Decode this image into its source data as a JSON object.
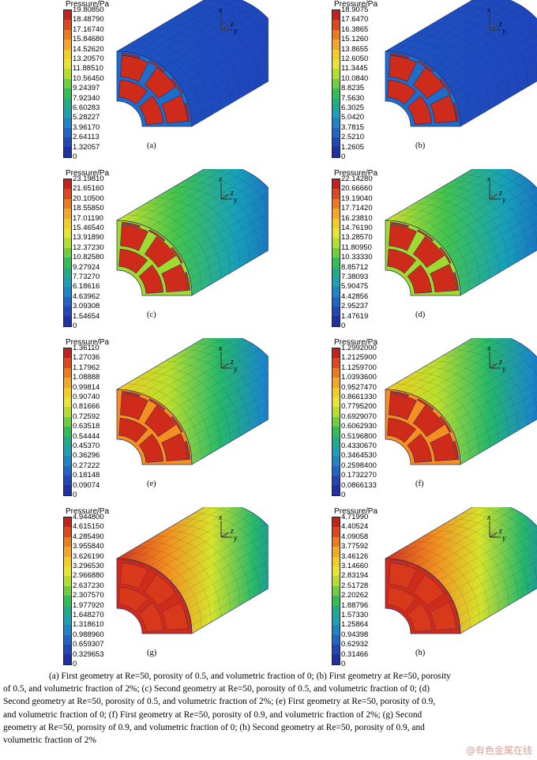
{
  "panels": [
    {
      "id": "a",
      "label": "(a)",
      "legend_title": "Pressure/Pa",
      "ticks": [
        "19.80850",
        "18.48790",
        "17.16740",
        "15.84680",
        "14.52620",
        "13.20570",
        "11.88510",
        "10.56450",
        "9.24397",
        "7.92340",
        "6.60283",
        "5.28227",
        "3.96170",
        "2.64113",
        "1.32057",
        "0"
      ],
      "scheme": "lowflat",
      "end": "cold"
    },
    {
      "id": "b",
      "label": "(b)",
      "legend_title": "Pressure/Pa",
      "ticks": [
        "18.9075",
        "17.6470",
        "16.3865",
        "15.1260",
        "13.8655",
        "12.6050",
        "11.3445",
        "10.0840",
        "8.8235",
        "7.5630",
        "6.3025",
        "5.0420",
        "3.7815",
        "2.5210",
        "1.2605",
        "0"
      ],
      "scheme": "lowflat",
      "end": "cold"
    },
    {
      "id": "c",
      "label": "(c)",
      "legend_title": "Pressure/Pa",
      "ticks": [
        "23.19810",
        "21.65160",
        "20.10500",
        "18.55850",
        "17.01190",
        "15.46540",
        "13.91890",
        "12.37230",
        "10.82580",
        "9.27924",
        "7.73270",
        "6.18616",
        "4.63962",
        "3.09308",
        "1.54654",
        "0"
      ],
      "scheme": "lowgrad",
      "end": "grid"
    },
    {
      "id": "d",
      "label": "(d)",
      "legend_title": "Pressure/Pa",
      "ticks": [
        "22.14280",
        "20.66660",
        "19.19040",
        "17.71420",
        "16.23810",
        "14.76190",
        "13.28570",
        "11.80950",
        "10.33330",
        "8.85712",
        "7.38093",
        "5.90475",
        "4.42856",
        "2.95237",
        "1.47619",
        "0"
      ],
      "scheme": "lowgrad",
      "end": "grid"
    },
    {
      "id": "e",
      "label": "(e)",
      "legend_title": "Pressure/Pa",
      "ticks": [
        "1.36110",
        "1.27036",
        "1.17962",
        "1.08888",
        "0.99814",
        "0.90740",
        "0.81666",
        "0.72592",
        "0.63518",
        "0.54444",
        "0.45370",
        "0.36296",
        "0.27222",
        "0.18148",
        "0.09074",
        "0"
      ],
      "scheme": "midgrad",
      "end": "warm"
    },
    {
      "id": "f",
      "label": "(f)",
      "legend_title": "Pressure/Pa",
      "ticks": [
        "1.2992000",
        "1.2125900",
        "1.1259700",
        "1.0393600",
        "0.9527470",
        "0.8661330",
        "0.7795200",
        "0.6929070",
        "0.6062930",
        "0.5196800",
        "0.4330670",
        "0.3464530",
        "0.2598400",
        "0.1732270",
        "0.0866133",
        "0"
      ],
      "scheme": "midgrad",
      "end": "warm"
    },
    {
      "id": "g",
      "label": "(g)",
      "legend_title": "Pressure/Pa",
      "ticks": [
        "4.944800",
        "4.615150",
        "4.285490",
        "3.955840",
        "3.626190",
        "3.296530",
        "2.966880",
        "2.637230",
        "2.307570",
        "1.977920",
        "1.648270",
        "1.318610",
        "0.988960",
        "0.659307",
        "0.329653",
        "0"
      ],
      "scheme": "highgrad",
      "end": "hot"
    },
    {
      "id": "h",
      "label": "(h)",
      "legend_title": "Pressure/Pa",
      "ticks": [
        "4.71990",
        "4.40524",
        "4.09058",
        "3.77592",
        "3.46126",
        "3.14660",
        "2.83194",
        "2.51728",
        "2.20262",
        "1.88796",
        "1.57330",
        "1.25864",
        "0.94398",
        "0.62932",
        "0.31466",
        "0"
      ],
      "scheme": "highgrad",
      "end": "hot"
    }
  ],
  "axes": {
    "x": "x",
    "y": "y",
    "z": "z"
  },
  "colormap": [
    "#c8211b",
    "#e2461b",
    "#f0791e",
    "#f5a623",
    "#f4cd21",
    "#e7e62a",
    "#b5de2c",
    "#6fcf3a",
    "#2fbf55",
    "#1aae8a",
    "#17a2b8",
    "#1b86c9",
    "#1c67c9",
    "#1f48bd",
    "#2030a8"
  ],
  "caption": {
    "lines": [
      "(a) First geometry at Re=50, porosity of 0.5, and volumetric fraction of 0; (b) First geometry at Re=50, porosity",
      "of 0.5, and volumetric fraction of 2%; (c) Second geometry at Re=50, porosity of 0.5, and volumetric fraction of 0; (d)",
      "Second geometry at Re=50, porosity of 0.5, and volumetric fraction of 2%; (e) First geometry at Re=50, porosity of 0.9,",
      "and volumetric fraction of 0; (f) First geometry at Re=50, porosity of 0.9, and volumetric fraction of 2%; (g) Second",
      "geometry at Re=50, porosity of 0.9, and volumetric fraction of 0; (h) Second geometry at Re=50, porosity of 0.9, and",
      "volumetric fraction of 2%"
    ]
  },
  "watermark": "@有色金属在线"
}
